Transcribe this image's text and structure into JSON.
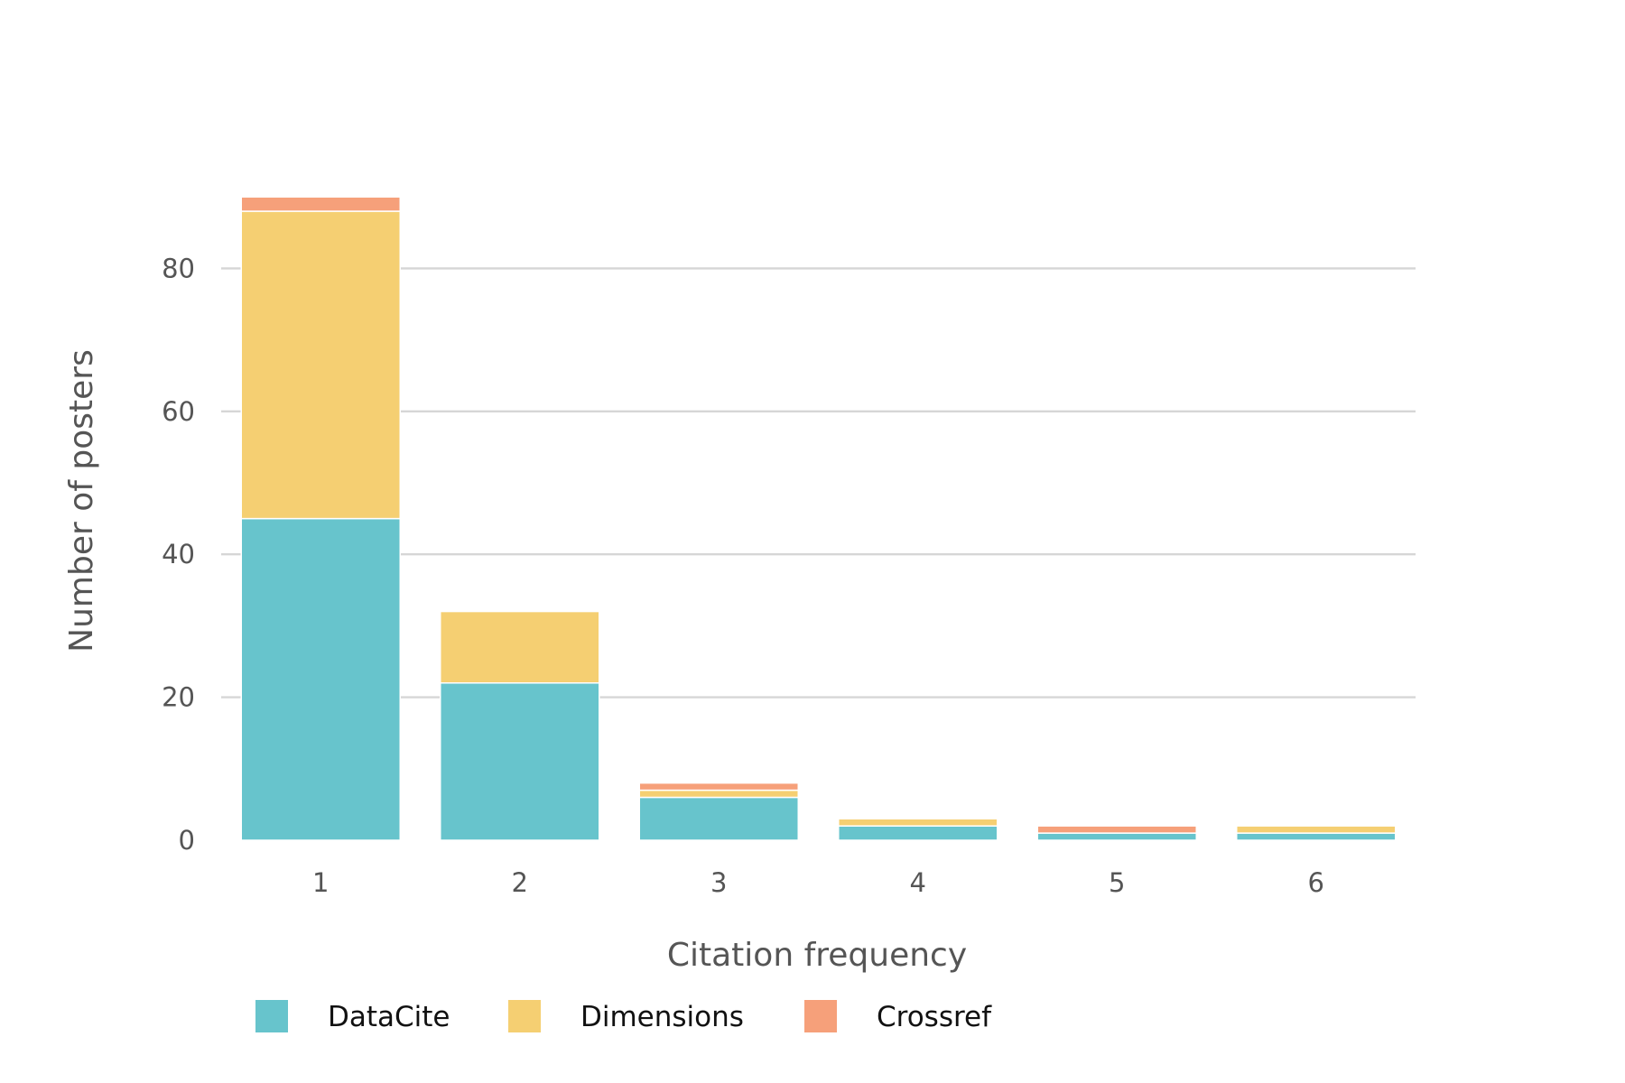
{
  "chart_data": {
    "type": "bar",
    "stacked": true,
    "title": "",
    "xlabel": "Citation frequency",
    "ylabel": "Number of posters",
    "categories": [
      "1",
      "2",
      "3",
      "4",
      "5",
      "6"
    ],
    "series": [
      {
        "name": "DataCite",
        "color": "#67c4cc",
        "values": [
          45,
          22,
          6,
          2,
          1,
          1
        ]
      },
      {
        "name": "Dimensions",
        "color": "#f5cf72",
        "values": [
          43,
          10,
          1,
          1,
          0,
          1
        ]
      },
      {
        "name": "Crossref",
        "color": "#f6a07a",
        "values": [
          2,
          0,
          1,
          0,
          1,
          0
        ]
      }
    ],
    "ylim": [
      0,
      90
    ],
    "yticks": [
      0,
      20,
      40,
      60,
      80
    ],
    "grid": "horizontal",
    "legend_position": "bottom-left"
  }
}
